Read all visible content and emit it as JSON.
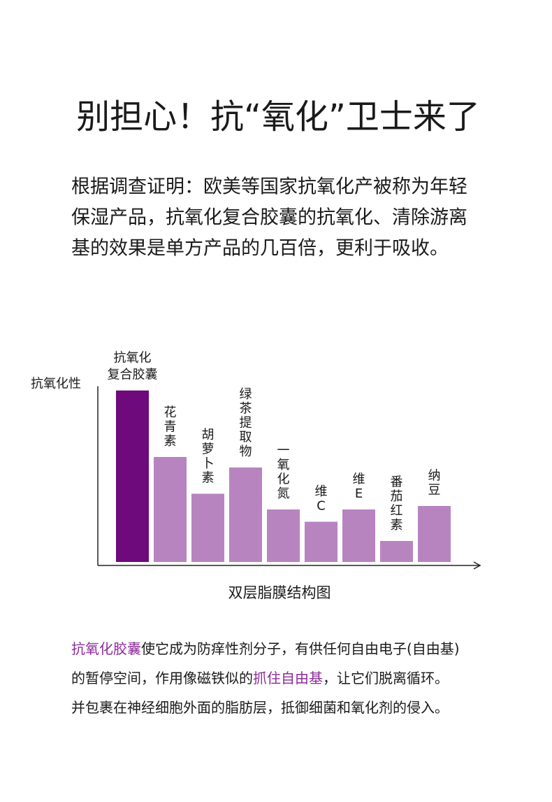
{
  "header": {
    "title": "别担心！抗“氧化”卫士来了"
  },
  "intro": {
    "lines": [
      "根据调查证明：欧美等国家抗氧化产被称为年轻",
      "保湿产品，抗氧化复合胶囊的抗氧化、清除游离",
      "基的效果是单方产品的几百倍，更利于吸收。"
    ]
  },
  "chart_data": {
    "type": "bar",
    "ylabel": "抗氧化性",
    "xlabel": "双层脂膜结构图",
    "categories": [
      [
        "抗氧化",
        "复合胶囊"
      ],
      [
        "花",
        "青",
        "素"
      ],
      [
        "胡",
        "萝",
        "卜",
        "素"
      ],
      [
        "绿",
        "茶",
        "提",
        "取",
        "物"
      ],
      [
        "一",
        "氧",
        "化",
        "氮"
      ],
      [
        "维",
        "C"
      ],
      [
        "维",
        "E"
      ],
      [
        "番",
        "茄",
        "红",
        "素"
      ],
      [
        "纳",
        "豆"
      ]
    ],
    "values": [
      98,
      60,
      39,
      54,
      30,
      23,
      30,
      12,
      32
    ],
    "colors": [
      "#6e0a7b",
      "#b784c0",
      "#b784c0",
      "#b784c0",
      "#b784c0",
      "#b784c0",
      "#b784c0",
      "#b784c0",
      "#b784c0"
    ],
    "ylim": [
      0,
      100
    ]
  },
  "footer": {
    "highlight_color": "#8b2c98",
    "lines": [
      [
        {
          "text": "抗氧化胶囊",
          "highlight": true
        },
        {
          "text": "使它成为防痒性剂分子，有供任何自由电子(自由基)",
          "highlight": false
        }
      ],
      [
        {
          "text": "的暂停空间，作用像磁铁似的",
          "highlight": false
        },
        {
          "text": "抓住自由基",
          "highlight": true
        },
        {
          "text": "，让它们脱离循环。",
          "highlight": false
        }
      ],
      [
        {
          "text": "并包裹在神经细胞外面的脂肪层，抵御细菌和氧化剂的侵入。",
          "highlight": false
        }
      ]
    ]
  }
}
